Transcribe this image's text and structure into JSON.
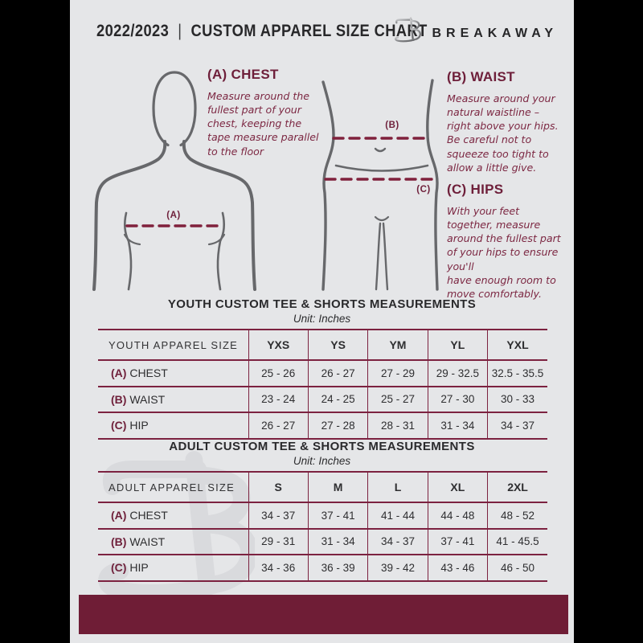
{
  "page": {
    "background": "#e5e6e8",
    "frame": "#000000",
    "accent_maroon": "#6f1d36",
    "table_border": "#7c2240"
  },
  "header": {
    "year": "2022/2023",
    "divider": "|",
    "title": "CUSTOM APPAREL SIZE CHART",
    "brand": "BREAKAWAY",
    "logo_icon": "breakaway-b-monogram"
  },
  "guide": {
    "chest": {
      "heading": "(A) CHEST",
      "body": "Measure around the\nfullest part of your\nchest, keeping the\ntape measure parallel\nto the floor"
    },
    "waist": {
      "heading": "(B) WAIST",
      "body": "Measure around your\nnatural waistline –\nright above your hips.\nBe careful not to\nsqueeze too tight to\nallow a little give."
    },
    "hips": {
      "heading": "(C) HIPS",
      "body": "With your feet\ntogether, measure\naround the fullest part\nof your hips to ensure\nyou'll\nhave enough room to\nmove comfortably."
    },
    "figure_labels": {
      "chest": "(A)",
      "waist": "(B)",
      "hips": "(C)"
    }
  },
  "tables": [
    {
      "title": "YOUTH CUSTOM TEE & SHORTS MEASUREMENTS",
      "unit": "Unit: Inches",
      "header": [
        "YOUTH APPAREL SIZE",
        "YXS",
        "YS",
        "YM",
        "YL",
        "YXL"
      ],
      "rows": [
        {
          "key": "(A)",
          "label": "CHEST",
          "values": [
            "25 - 26",
            "26 - 27",
            "27 - 29",
            "29 - 32.5",
            "32.5 - 35.5"
          ]
        },
        {
          "key": "(B)",
          "label": "WAIST",
          "values": [
            "23 - 24",
            "24 - 25",
            "25 - 27",
            "27 - 30",
            "30 - 33"
          ]
        },
        {
          "key": "(C)",
          "label": "HIP",
          "values": [
            "26 - 27",
            "27 - 28",
            "28 - 31",
            "31 - 34",
            "34 - 37"
          ]
        }
      ]
    },
    {
      "title": "ADULT CUSTOM TEE & SHORTS MEASUREMENTS",
      "unit": "Unit: Inches",
      "header": [
        "ADULT APPAREL SIZE",
        "S",
        "M",
        "L",
        "XL",
        "2XL"
      ],
      "rows": [
        {
          "key": "(A)",
          "label": "CHEST",
          "values": [
            "34 - 37",
            "37 - 41",
            "41 - 44",
            "44 - 48",
            "48 - 52"
          ]
        },
        {
          "key": "(B)",
          "label": "WAIST",
          "values": [
            "29 - 31",
            "31 - 34",
            "34 - 37",
            "37 - 41",
            "41 - 45.5"
          ]
        },
        {
          "key": "(C)",
          "label": "HIP",
          "values": [
            "34 - 36",
            "36 - 39",
            "39 - 42",
            "43 - 46",
            "46 - 50"
          ]
        }
      ]
    }
  ],
  "watermark": "B"
}
